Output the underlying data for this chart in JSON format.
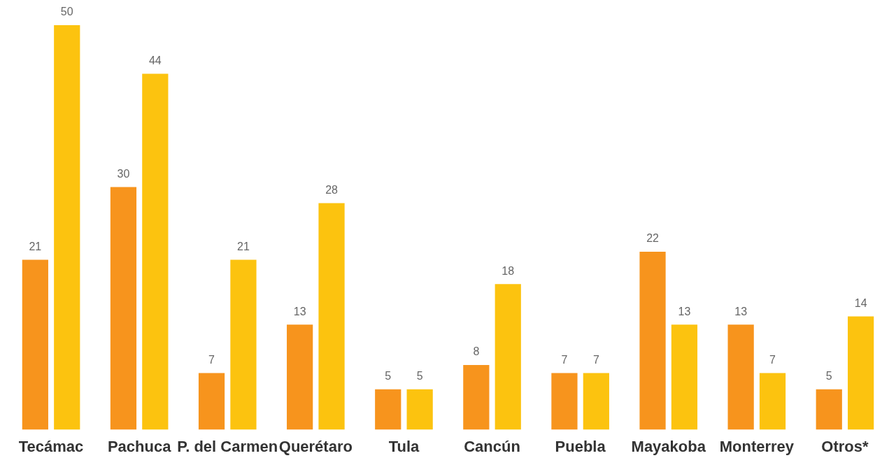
{
  "chart_data": {
    "type": "bar",
    "categories": [
      "Tecámac",
      "Pachuca",
      "P. del Carmen",
      "Querétaro",
      "Tula",
      "Cancún",
      "Puebla",
      "Mayakoba",
      "Monterrey",
      "Otros*"
    ],
    "series": [
      {
        "color": "#f7941d",
        "values": [
          21,
          30,
          7,
          13,
          5,
          8,
          7,
          22,
          13,
          5
        ]
      },
      {
        "color": "#fcc30f",
        "values": [
          50,
          44,
          21,
          28,
          5,
          18,
          7,
          13,
          7,
          14
        ]
      }
    ],
    "data_labels": true,
    "grid": false,
    "legend": false
  }
}
